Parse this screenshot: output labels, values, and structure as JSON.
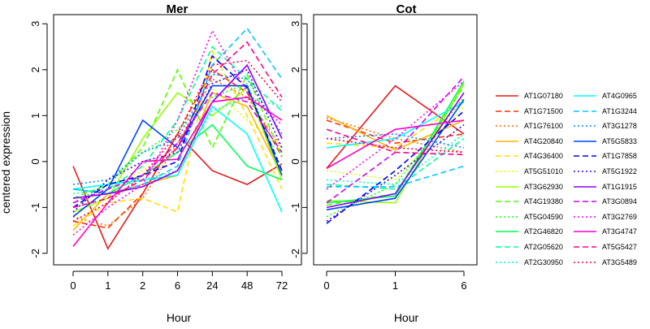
{
  "chart_data": [
    {
      "type": "line",
      "title": "Mer",
      "xlabel": "Hour",
      "ylabel": "centered expression",
      "categories": [
        "0",
        "1",
        "2",
        "6",
        "24",
        "48",
        "72"
      ],
      "ylim": [
        -2.25,
        3.2
      ],
      "yticks": [
        -2,
        -1,
        0,
        1,
        2,
        3
      ],
      "series": [
        {
          "name": "AT1G07180",
          "values": [
            -0.1,
            -1.9,
            -0.7,
            0.6,
            -0.2,
            -0.5,
            -0.05
          ]
        },
        {
          "name": "AT1G71500",
          "values": [
            -1.3,
            -1.45,
            -0.7,
            0.6,
            2.0,
            1.5,
            0.1
          ]
        },
        {
          "name": "AT1G76100",
          "values": [
            -1.2,
            -1.4,
            -0.8,
            0.4,
            1.8,
            1.4,
            0.3
          ]
        },
        {
          "name": "AT4G20840",
          "values": [
            -1.5,
            -0.7,
            -0.5,
            -0.3,
            1.5,
            1.2,
            -0.3
          ]
        },
        {
          "name": "AT4G36400",
          "values": [
            -1.4,
            -0.9,
            -0.8,
            -1.1,
            2.4,
            1.0,
            -0.6
          ]
        },
        {
          "name": "AT5G51010",
          "values": [
            -1.0,
            -0.6,
            -0.2,
            0.3,
            1.6,
            0.9,
            0.3
          ]
        },
        {
          "name": "AT3G62930",
          "values": [
            -1.1,
            -0.8,
            0.5,
            1.5,
            1.0,
            1.6,
            -0.4
          ]
        },
        {
          "name": "AT4G19380",
          "values": [
            -0.8,
            -0.5,
            0.3,
            2.0,
            0.3,
            1.9,
            0.1
          ]
        },
        {
          "name": "AT5G04590",
          "values": [
            -0.9,
            -0.5,
            0.2,
            0.7,
            1.4,
            1.7,
            -0.2
          ]
        },
        {
          "name": "AT2G46820",
          "values": [
            -0.6,
            -0.7,
            -0.3,
            0.2,
            0.8,
            -0.1,
            -0.4
          ]
        },
        {
          "name": "AT2G05620",
          "values": [
            -1.2,
            -0.6,
            -0.1,
            0.9,
            2.5,
            1.8,
            1.1
          ]
        },
        {
          "name": "AT2G30950",
          "values": [
            -0.7,
            -0.6,
            -0.4,
            -0.2,
            1.1,
            1.4,
            1.2
          ]
        },
        {
          "name": "AT4G0965",
          "values": [
            -0.6,
            -0.5,
            -0.4,
            -0.3,
            1.2,
            0.6,
            -1.1
          ]
        },
        {
          "name": "AT1G3244",
          "values": [
            -0.6,
            -0.7,
            -0.5,
            -0.1,
            2.1,
            2.9,
            1.8
          ]
        },
        {
          "name": "AT3G1278",
          "values": [
            -0.5,
            -0.4,
            0.2,
            0.5,
            1.9,
            1.8,
            0.6
          ]
        },
        {
          "name": "AT5G5833",
          "values": [
            -1.2,
            -0.6,
            0.9,
            0.3,
            1.65,
            1.65,
            -0.3
          ]
        },
        {
          "name": "AT1G7858",
          "values": [
            -1.0,
            -0.5,
            -0.3,
            0.0,
            2.3,
            1.6,
            -0.2
          ]
        },
        {
          "name": "AT5G1922",
          "values": [
            -1.1,
            -0.4,
            0.0,
            0.2,
            1.7,
            2.0,
            0.3
          ]
        },
        {
          "name": "AT1G1915",
          "values": [
            -0.8,
            -0.7,
            -0.55,
            -0.2,
            1.3,
            2.1,
            0.5
          ]
        },
        {
          "name": "AT3G0894",
          "values": [
            -0.9,
            -0.6,
            -0.3,
            0.4,
            1.5,
            1.3,
            0.2
          ]
        },
        {
          "name": "AT3G2769",
          "values": [
            -1.6,
            -1.0,
            -0.5,
            0.9,
            2.85,
            1.5,
            0.8
          ]
        },
        {
          "name": "AT3G4747",
          "values": [
            -1.85,
            -0.9,
            0.0,
            0.05,
            1.3,
            1.4,
            0.9
          ]
        },
        {
          "name": "AT5G5427",
          "values": [
            -1.0,
            -0.8,
            -0.4,
            0.3,
            1.9,
            2.6,
            1.4
          ]
        },
        {
          "name": "AT3G5489",
          "values": [
            -1.3,
            -0.9,
            -0.3,
            0.6,
            2.1,
            2.2,
            1.3
          ]
        }
      ]
    },
    {
      "type": "line",
      "title": "Cot",
      "xlabel": "Hour",
      "ylabel": "",
      "categories": [
        "0",
        "1",
        "6"
      ],
      "ylim": [
        -2.25,
        3.2
      ],
      "yticks": [
        -2,
        -1,
        0,
        1,
        2,
        3
      ],
      "series": [
        {
          "name": "AT1G07180",
          "values": [
            -0.15,
            1.65,
            0.6
          ]
        },
        {
          "name": "AT1G71500",
          "values": [
            0.9,
            0.4,
            0.6
          ]
        },
        {
          "name": "AT1G76100",
          "values": [
            0.95,
            0.5,
            0.2
          ]
        },
        {
          "name": "AT4G20840",
          "values": [
            1.0,
            0.25,
            0.9
          ]
        },
        {
          "name": "AT4G36400",
          "values": [
            0.4,
            0.3,
            1.3
          ]
        },
        {
          "name": "AT5G51010",
          "values": [
            -0.2,
            -0.4,
            1.2
          ]
        },
        {
          "name": "AT3G62930",
          "values": [
            -0.85,
            -0.9,
            1.7
          ]
        },
        {
          "name": "AT4G19380",
          "values": [
            -0.95,
            -0.7,
            1.65
          ]
        },
        {
          "name": "AT5G04590",
          "values": [
            -1.2,
            -0.5,
            1.4
          ]
        },
        {
          "name": "AT2G46820",
          "values": [
            -0.9,
            -0.75,
            1.75
          ]
        },
        {
          "name": "AT2G05620",
          "values": [
            -0.5,
            -0.6,
            0.5
          ]
        },
        {
          "name": "AT2G30950",
          "values": [
            -0.4,
            -0.5,
            0.6
          ]
        },
        {
          "name": "AT4G0965",
          "values": [
            0.3,
            0.5,
            1.3
          ]
        },
        {
          "name": "AT1G3244",
          "values": [
            -0.55,
            -0.55,
            -0.1
          ]
        },
        {
          "name": "AT3G1278",
          "values": [
            0.5,
            0.6,
            0.3
          ]
        },
        {
          "name": "AT5G5833",
          "values": [
            -1.05,
            -0.8,
            1.35
          ]
        },
        {
          "name": "AT1G7858",
          "values": [
            -1.35,
            -0.2,
            1.1
          ]
        },
        {
          "name": "AT5G1922",
          "values": [
            -1.3,
            -0.3,
            0.8
          ]
        },
        {
          "name": "AT1G1915",
          "values": [
            -1.0,
            -0.7,
            1.5
          ]
        },
        {
          "name": "AT3G0894",
          "values": [
            -0.9,
            0.2,
            1.85
          ]
        },
        {
          "name": "AT3G2769",
          "values": [
            -0.6,
            0.5,
            1.75
          ]
        },
        {
          "name": "AT3G4747",
          "values": [
            -0.15,
            0.7,
            0.9
          ]
        },
        {
          "name": "AT5G5427",
          "values": [
            0.7,
            0.2,
            0.15
          ]
        },
        {
          "name": "AT3G5489",
          "values": [
            0.5,
            0.3,
            0.2
          ]
        }
      ]
    }
  ],
  "legend": {
    "placement": "right",
    "items": [
      {
        "name": "AT1G07180",
        "color": "#e41a1c",
        "dash": "solid"
      },
      {
        "name": "AT1G71500",
        "color": "#ff3300",
        "dash": "dashed"
      },
      {
        "name": "AT1G76100",
        "color": "#ff6a00",
        "dash": "dotted"
      },
      {
        "name": "AT4G20840",
        "color": "#ffb300",
        "dash": "solid"
      },
      {
        "name": "AT4G36400",
        "color": "#ffe000",
        "dash": "dashed"
      },
      {
        "name": "AT5G51010",
        "color": "#e0ff00",
        "dash": "dotted"
      },
      {
        "name": "AT3G62930",
        "color": "#99ff00",
        "dash": "solid"
      },
      {
        "name": "AT4G19380",
        "color": "#55ff00",
        "dash": "dashed"
      },
      {
        "name": "AT5G04590",
        "color": "#1aff1a",
        "dash": "dotted"
      },
      {
        "name": "AT2G46820",
        "color": "#00ff55",
        "dash": "solid"
      },
      {
        "name": "AT2G05620",
        "color": "#00ff99",
        "dash": "dashed"
      },
      {
        "name": "AT2G30950",
        "color": "#00ffcc",
        "dash": "dotted"
      },
      {
        "name": "AT4G0965",
        "color": "#00ffff",
        "dash": "solid"
      },
      {
        "name": "AT1G3244",
        "color": "#00c8ff",
        "dash": "dashed"
      },
      {
        "name": "AT3G1278",
        "color": "#0088ff",
        "dash": "dotted"
      },
      {
        "name": "AT5G5833",
        "color": "#0044ff",
        "dash": "solid"
      },
      {
        "name": "AT1G7858",
        "color": "#0000ff",
        "dash": "dashed"
      },
      {
        "name": "AT5G1922",
        "color": "#4400ff",
        "dash": "dotted"
      },
      {
        "name": "AT1G1915",
        "color": "#8800ff",
        "dash": "solid"
      },
      {
        "name": "AT3G0894",
        "color": "#cc00ff",
        "dash": "dashed"
      },
      {
        "name": "AT3G2769",
        "color": "#ff00ff",
        "dash": "dotted"
      },
      {
        "name": "AT3G4747",
        "color": "#ff00cc",
        "dash": "solid"
      },
      {
        "name": "AT5G5427",
        "color": "#ff0088",
        "dash": "dashed"
      },
      {
        "name": "AT3G5489",
        "color": "#ff0044",
        "dash": "dotted"
      }
    ]
  }
}
